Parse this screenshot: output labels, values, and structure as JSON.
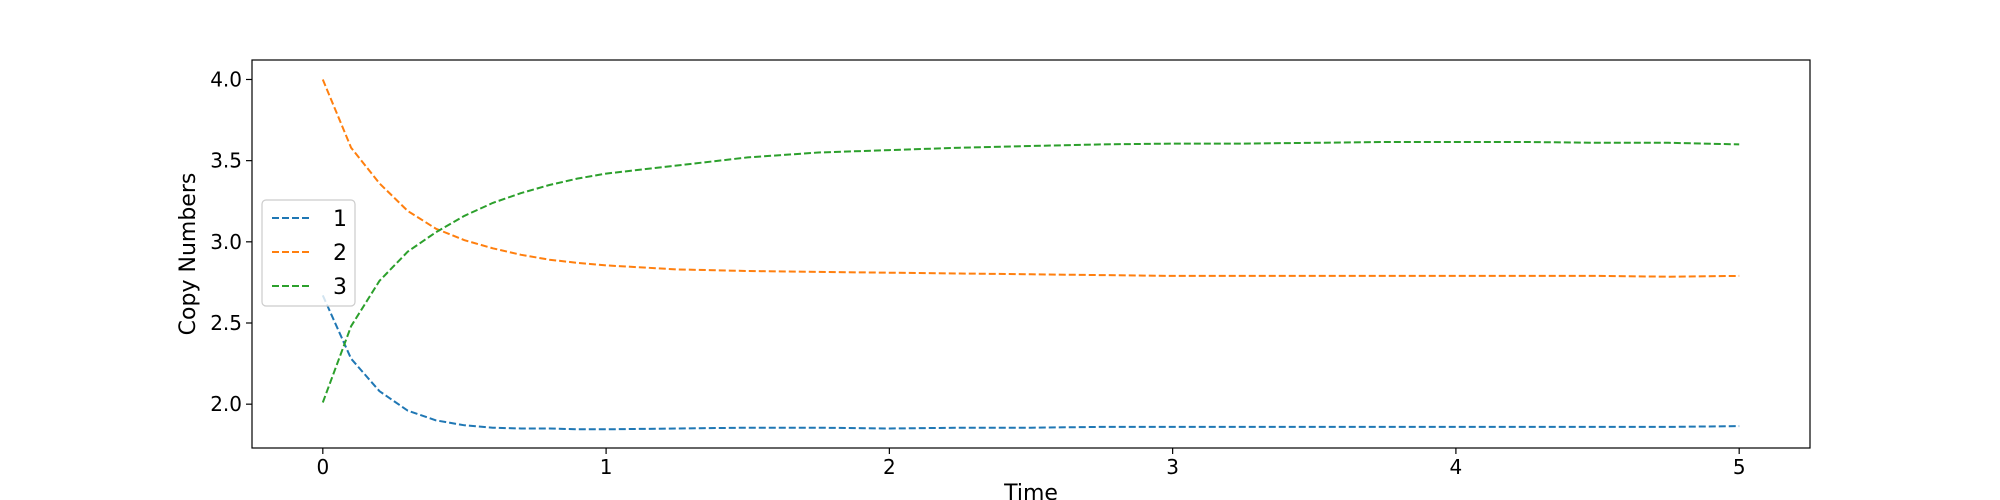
{
  "chart_data": {
    "type": "line",
    "title": "",
    "xlabel": "Time",
    "ylabel": "Copy Numbers",
    "xlim": [
      -0.25,
      5.25
    ],
    "ylim": [
      1.73,
      4.12
    ],
    "xticks": [
      "0",
      "1",
      "2",
      "3",
      "4",
      "5"
    ],
    "yticks": [
      "2.0",
      "2.5",
      "3.0",
      "3.5",
      "4.0"
    ],
    "grid": false,
    "legend_position": "center-left",
    "line_style": "dashed",
    "x": [
      0,
      0.1,
      0.2,
      0.3,
      0.4,
      0.5,
      0.6,
      0.7,
      0.8,
      0.9,
      1.0,
      1.25,
      1.5,
      1.75,
      2.0,
      2.25,
      2.5,
      2.75,
      3.0,
      3.25,
      3.5,
      3.75,
      4.0,
      4.25,
      4.5,
      4.75,
      5.0
    ],
    "series": [
      {
        "name": "1",
        "color": "#1f77b4",
        "values": [
          2.67,
          2.28,
          2.08,
          1.96,
          1.9,
          1.87,
          1.855,
          1.85,
          1.85,
          1.845,
          1.845,
          1.85,
          1.855,
          1.855,
          1.85,
          1.855,
          1.855,
          1.86,
          1.86,
          1.86,
          1.86,
          1.86,
          1.86,
          1.86,
          1.86,
          1.86,
          1.865
        ]
      },
      {
        "name": "2",
        "color": "#ff7f0e",
        "values": [
          4.0,
          3.58,
          3.36,
          3.19,
          3.08,
          3.01,
          2.96,
          2.92,
          2.89,
          2.87,
          2.855,
          2.83,
          2.82,
          2.815,
          2.81,
          2.805,
          2.8,
          2.795,
          2.79,
          2.79,
          2.79,
          2.79,
          2.79,
          2.79,
          2.79,
          2.785,
          2.79
        ]
      },
      {
        "name": "3",
        "color": "#2ca02c",
        "values": [
          2.01,
          2.48,
          2.76,
          2.94,
          3.06,
          3.16,
          3.24,
          3.3,
          3.35,
          3.39,
          3.42,
          3.47,
          3.52,
          3.55,
          3.565,
          3.58,
          3.59,
          3.6,
          3.605,
          3.605,
          3.61,
          3.615,
          3.615,
          3.615,
          3.61,
          3.61,
          3.6
        ]
      }
    ]
  }
}
